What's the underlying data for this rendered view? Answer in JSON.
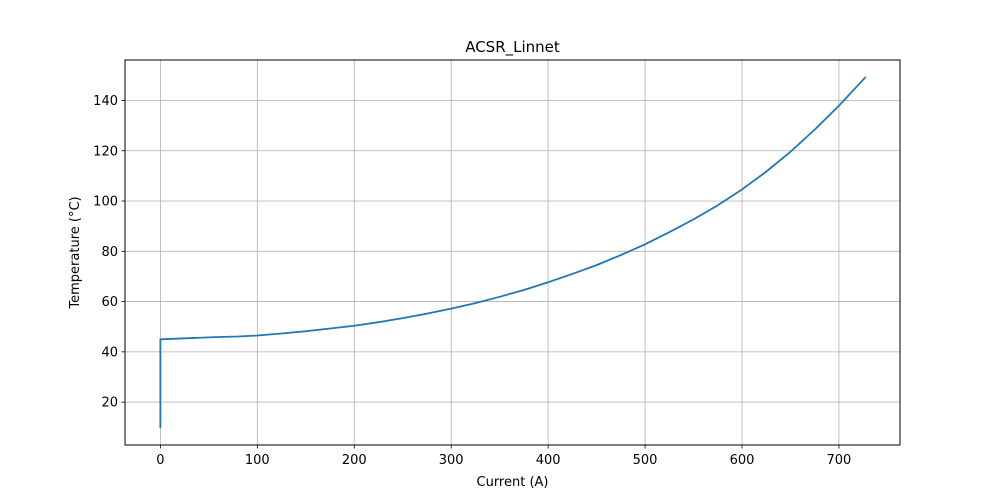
{
  "chart_data": {
    "type": "line",
    "title": "ACSR_Linnet",
    "xlabel": "Current (A)",
    "ylabel": "Temperature (°C)",
    "xlim": [
      -36.5,
      763.0
    ],
    "ylim": [
      2.95,
      156.1
    ],
    "xticks": [
      0,
      100,
      200,
      300,
      400,
      500,
      600,
      700
    ],
    "yticks": [
      20,
      40,
      60,
      80,
      100,
      120,
      140
    ],
    "grid": true,
    "legend": "none",
    "series": [
      {
        "color": "#1f77b4",
        "x": [
          0,
          0,
          0,
          20,
          40,
          60,
          80,
          100,
          125,
          150,
          175,
          200,
          225,
          250,
          275,
          300,
          325,
          350,
          375,
          400,
          425,
          450,
          475,
          500,
          525,
          550,
          575,
          600,
          625,
          650,
          675,
          700,
          727
        ],
        "y": [
          10,
          20,
          45,
          45.3,
          45.6,
          45.9,
          46.1,
          46.5,
          47.3,
          48.2,
          49.3,
          50.4,
          51.8,
          53.4,
          55.2,
          57.2,
          59.4,
          61.9,
          64.6,
          67.7,
          71.0,
          74.5,
          78.5,
          82.8,
          87.6,
          92.7,
          98.3,
          104.6,
          111.7,
          119.6,
          128.4,
          137.9,
          149.1
        ]
      }
    ]
  }
}
